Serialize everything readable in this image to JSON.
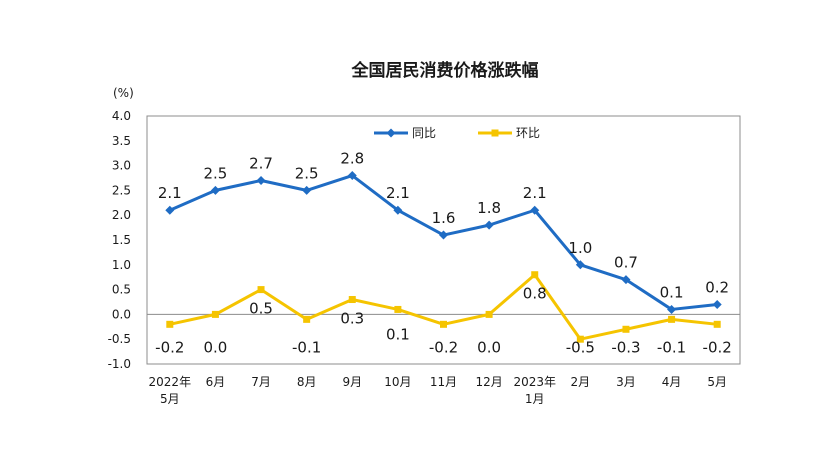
{
  "chart_data": {
    "type": "line",
    "title": "全国居民消费价格涨跌幅",
    "unit_label": "(%)",
    "categories": [
      [
        "2022年",
        "5月"
      ],
      [
        "6月"
      ],
      [
        "7月"
      ],
      [
        "8月"
      ],
      [
        "9月"
      ],
      [
        "10月"
      ],
      [
        "11月"
      ],
      [
        "12月"
      ],
      [
        "2023年",
        "1月"
      ],
      [
        "2月"
      ],
      [
        "3月"
      ],
      [
        "4月"
      ],
      [
        "5月"
      ]
    ],
    "ylim": [
      -1.0,
      4.0
    ],
    "yticks": [
      "4.0",
      "3.5",
      "3.0",
      "2.5",
      "2.0",
      "1.5",
      "1.0",
      "0.5",
      "0.0",
      "-0.5",
      "-1.0"
    ],
    "ytick_values": [
      4.0,
      3.5,
      3.0,
      2.5,
      2.0,
      1.5,
      1.0,
      0.5,
      0.0,
      -0.5,
      -1.0
    ],
    "grid": false,
    "legend_position": "top-center",
    "series": [
      {
        "name": "同比",
        "color": "#1f6cc4",
        "marker": "diamond",
        "values": [
          2.1,
          2.5,
          2.7,
          2.5,
          2.8,
          2.1,
          1.6,
          1.8,
          2.1,
          1.0,
          0.7,
          0.1,
          0.2
        ],
        "labels": [
          "2.1",
          "2.5",
          "2.7",
          "2.5",
          "2.8",
          "2.1",
          "1.6",
          "1.8",
          "2.1",
          "1.0",
          "0.7",
          "0.1",
          "0.2"
        ]
      },
      {
        "name": "环比",
        "color": "#f5c400",
        "marker": "square",
        "values": [
          -0.2,
          0.0,
          0.5,
          -0.1,
          0.3,
          0.1,
          -0.2,
          0.0,
          0.8,
          -0.5,
          -0.3,
          -0.1,
          -0.2
        ],
        "labels": [
          "-0.2",
          "0.0",
          "0.5",
          "-0.1",
          "0.3",
          "0.1",
          "-0.2",
          "0.0",
          "0.8",
          "-0.5",
          "-0.3",
          "-0.1",
          "-0.2"
        ]
      }
    ]
  }
}
